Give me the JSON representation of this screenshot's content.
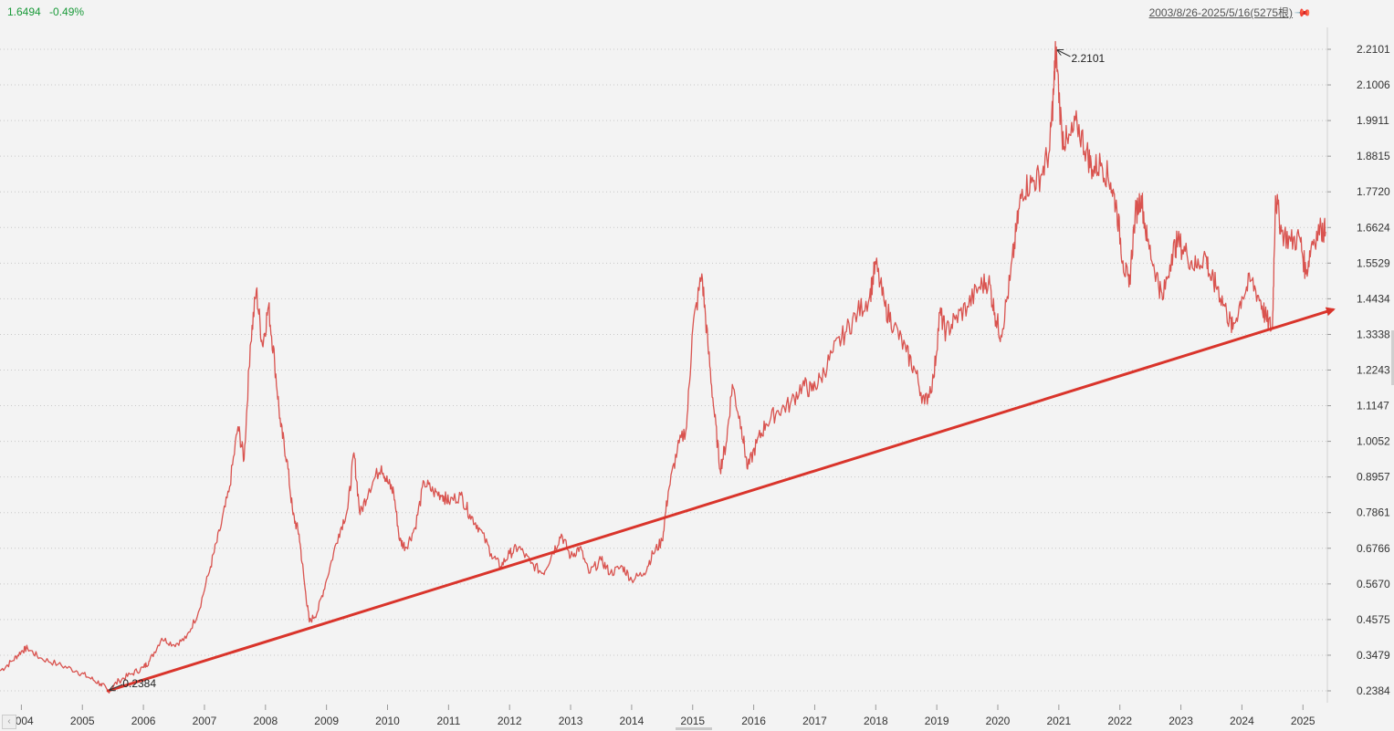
{
  "header": {
    "price": "1.6494",
    "change": "-0.49%",
    "range_label": "2003/8/26-2025/5/16(5275根)",
    "pin_icon": "pin-icon"
  },
  "colors": {
    "line": "#d9534f",
    "trend": "#d9342b",
    "grid": "#c8c8c8",
    "up_text": "#1a9a3a"
  },
  "annotations": {
    "high_label": "2.2101",
    "low_label": "0.2384"
  },
  "chart_data": {
    "type": "line",
    "title": "",
    "xlabel": "",
    "ylabel": "",
    "ylim": [
      0.2384,
      2.2101
    ],
    "yticks": [
      "2.2101",
      "2.1006",
      "1.9911",
      "1.8815",
      "1.7720",
      "1.6624",
      "1.5529",
      "1.4434",
      "1.3338",
      "1.2243",
      "1.1147",
      "1.0052",
      "0.8957",
      "0.7861",
      "0.6766",
      "0.5670",
      "0.4575",
      "0.3479",
      "0.2384"
    ],
    "xlim": [
      2003.65,
      2025.4
    ],
    "xticks": [
      "2004",
      "2005",
      "2006",
      "2007",
      "2008",
      "2009",
      "2010",
      "2011",
      "2012",
      "2013",
      "2014",
      "2015",
      "2016",
      "2017",
      "2018",
      "2019",
      "2020",
      "2021",
      "2022",
      "2023",
      "2024",
      "2025"
    ],
    "grid": "horizontal dotted",
    "series": [
      {
        "values": [
          [
            2003.65,
            0.3
          ],
          [
            2003.85,
            0.33
          ],
          [
            2004.0,
            0.36
          ],
          [
            2004.1,
            0.37
          ],
          [
            2004.3,
            0.34
          ],
          [
            2004.6,
            0.32
          ],
          [
            2004.9,
            0.3
          ],
          [
            2005.1,
            0.28
          ],
          [
            2005.3,
            0.26
          ],
          [
            2005.42,
            0.2384
          ],
          [
            2005.6,
            0.27
          ],
          [
            2005.8,
            0.29
          ],
          [
            2006.0,
            0.31
          ],
          [
            2006.1,
            0.33
          ],
          [
            2006.3,
            0.4
          ],
          [
            2006.5,
            0.38
          ],
          [
            2006.7,
            0.4
          ],
          [
            2006.9,
            0.48
          ],
          [
            2007.1,
            0.62
          ],
          [
            2007.25,
            0.73
          ],
          [
            2007.4,
            0.85
          ],
          [
            2007.55,
            1.05
          ],
          [
            2007.65,
            0.95
          ],
          [
            2007.75,
            1.3
          ],
          [
            2007.85,
            1.47
          ],
          [
            2007.95,
            1.3
          ],
          [
            2008.05,
            1.42
          ],
          [
            2008.15,
            1.25
          ],
          [
            2008.25,
            1.05
          ],
          [
            2008.35,
            0.95
          ],
          [
            2008.45,
            0.78
          ],
          [
            2008.55,
            0.72
          ],
          [
            2008.65,
            0.55
          ],
          [
            2008.72,
            0.45
          ],
          [
            2008.85,
            0.48
          ],
          [
            2009.0,
            0.58
          ],
          [
            2009.2,
            0.72
          ],
          [
            2009.35,
            0.8
          ],
          [
            2009.45,
            0.97
          ],
          [
            2009.55,
            0.78
          ],
          [
            2009.7,
            0.86
          ],
          [
            2009.9,
            0.93
          ],
          [
            2010.0,
            0.88
          ],
          [
            2010.1,
            0.85
          ],
          [
            2010.2,
            0.7
          ],
          [
            2010.3,
            0.68
          ],
          [
            2010.45,
            0.74
          ],
          [
            2010.6,
            0.88
          ],
          [
            2010.75,
            0.85
          ],
          [
            2010.9,
            0.84
          ],
          [
            2011.0,
            0.82
          ],
          [
            2011.2,
            0.84
          ],
          [
            2011.35,
            0.78
          ],
          [
            2011.5,
            0.74
          ],
          [
            2011.7,
            0.66
          ],
          [
            2011.85,
            0.62
          ],
          [
            2012.0,
            0.66
          ],
          [
            2012.15,
            0.68
          ],
          [
            2012.35,
            0.63
          ],
          [
            2012.55,
            0.6
          ],
          [
            2012.7,
            0.66
          ],
          [
            2012.85,
            0.72
          ],
          [
            2013.0,
            0.65
          ],
          [
            2013.15,
            0.68
          ],
          [
            2013.3,
            0.6
          ],
          [
            2013.5,
            0.64
          ],
          [
            2013.65,
            0.6
          ],
          [
            2013.85,
            0.62
          ],
          [
            2014.0,
            0.58
          ],
          [
            2014.2,
            0.6
          ],
          [
            2014.35,
            0.66
          ],
          [
            2014.5,
            0.7
          ],
          [
            2014.6,
            0.85
          ],
          [
            2014.75,
            0.98
          ],
          [
            2014.9,
            1.05
          ],
          [
            2015.0,
            1.35
          ],
          [
            2015.15,
            1.52
          ],
          [
            2015.25,
            1.3
          ],
          [
            2015.35,
            1.1
          ],
          [
            2015.45,
            0.92
          ],
          [
            2015.55,
            1.0
          ],
          [
            2015.65,
            1.18
          ],
          [
            2015.8,
            1.05
          ],
          [
            2015.9,
            0.92
          ],
          [
            2016.05,
            1.0
          ],
          [
            2016.2,
            1.06
          ],
          [
            2016.4,
            1.1
          ],
          [
            2016.6,
            1.12
          ],
          [
            2016.8,
            1.18
          ],
          [
            2016.95,
            1.16
          ],
          [
            2017.1,
            1.2
          ],
          [
            2017.3,
            1.28
          ],
          [
            2017.5,
            1.34
          ],
          [
            2017.7,
            1.4
          ],
          [
            2017.9,
            1.45
          ],
          [
            2018.0,
            1.55
          ],
          [
            2018.15,
            1.42
          ],
          [
            2018.3,
            1.36
          ],
          [
            2018.5,
            1.28
          ],
          [
            2018.65,
            1.22
          ],
          [
            2018.8,
            1.12
          ],
          [
            2018.95,
            1.2
          ],
          [
            2019.05,
            1.4
          ],
          [
            2019.15,
            1.34
          ],
          [
            2019.3,
            1.38
          ],
          [
            2019.5,
            1.42
          ],
          [
            2019.7,
            1.48
          ],
          [
            2019.85,
            1.5
          ],
          [
            2019.95,
            1.4
          ],
          [
            2020.05,
            1.33
          ],
          [
            2020.2,
            1.5
          ],
          [
            2020.3,
            1.65
          ],
          [
            2020.4,
            1.78
          ],
          [
            2020.55,
            1.8
          ],
          [
            2020.7,
            1.82
          ],
          [
            2020.85,
            1.9
          ],
          [
            2020.92,
            2.1
          ],
          [
            2020.95,
            2.2101
          ],
          [
            2021.05,
            1.95
          ],
          [
            2021.15,
            1.92
          ],
          [
            2021.3,
            1.98
          ],
          [
            2021.45,
            1.9
          ],
          [
            2021.55,
            1.84
          ],
          [
            2021.7,
            1.86
          ],
          [
            2021.85,
            1.8
          ],
          [
            2021.95,
            1.72
          ],
          [
            2022.05,
            1.56
          ],
          [
            2022.15,
            1.48
          ],
          [
            2022.25,
            1.7
          ],
          [
            2022.35,
            1.76
          ],
          [
            2022.45,
            1.62
          ],
          [
            2022.6,
            1.52
          ],
          [
            2022.7,
            1.44
          ],
          [
            2022.85,
            1.58
          ],
          [
            2022.95,
            1.62
          ],
          [
            2023.1,
            1.58
          ],
          [
            2023.25,
            1.54
          ],
          [
            2023.4,
            1.58
          ],
          [
            2023.5,
            1.5
          ],
          [
            2023.6,
            1.48
          ],
          [
            2023.75,
            1.4
          ],
          [
            2023.85,
            1.35
          ],
          [
            2024.0,
            1.45
          ],
          [
            2024.15,
            1.5
          ],
          [
            2024.3,
            1.44
          ],
          [
            2024.4,
            1.38
          ],
          [
            2024.5,
            1.35
          ],
          [
            2024.55,
            1.76
          ],
          [
            2024.65,
            1.65
          ],
          [
            2024.8,
            1.62
          ],
          [
            2024.95,
            1.63
          ],
          [
            2025.05,
            1.52
          ],
          [
            2025.15,
            1.62
          ],
          [
            2025.3,
            1.66
          ],
          [
            2025.37,
            1.6494
          ]
        ]
      }
    ],
    "trendline": {
      "from": [
        2005.42,
        0.2384
      ],
      "to": [
        2025.4,
        1.41
      ]
    }
  }
}
